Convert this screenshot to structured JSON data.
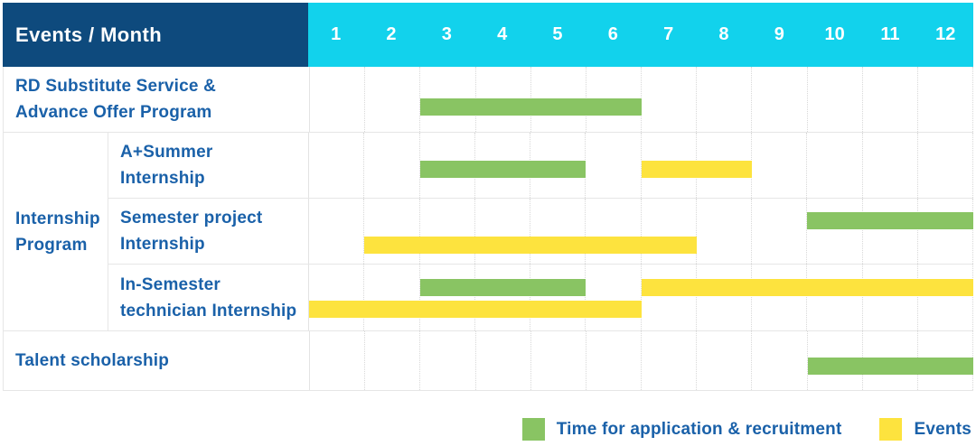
{
  "header": {
    "title": "Events / Month",
    "months": [
      "1",
      "2",
      "3",
      "4",
      "5",
      "6",
      "7",
      "8",
      "9",
      "10",
      "11",
      "12"
    ]
  },
  "rows": {
    "rd": {
      "label": "RD Substitute Service &\nAdvance Offer Program",
      "bars": [
        {
          "color": "green",
          "start": 3,
          "end": 6,
          "top_pct": 48
        }
      ]
    },
    "internship_group": {
      "label": "Internship\nProgram"
    },
    "a_summer": {
      "label": "A+Summer\nInternship",
      "bars": [
        {
          "color": "green",
          "start": 3,
          "end": 5,
          "top_pct": 43
        },
        {
          "color": "yellow",
          "start": 7,
          "end": 8,
          "top_pct": 43
        }
      ]
    },
    "semester_project": {
      "label": "Semester project\nInternship",
      "bars": [
        {
          "color": "green",
          "start": 10,
          "end": 12,
          "top_pct": 21
        },
        {
          "color": "yellow",
          "start": 2,
          "end": 7,
          "top_pct": 59
        }
      ]
    },
    "in_semester": {
      "label": "In-Semester\ntechnician Internship",
      "bars": [
        {
          "color": "green",
          "start": 3,
          "end": 5,
          "top_pct": 22
        },
        {
          "color": "yellow",
          "start": 7,
          "end": 12,
          "top_pct": 22
        },
        {
          "color": "yellow",
          "start": 1,
          "end": 6,
          "top_pct": 55
        }
      ]
    },
    "talent": {
      "label": "Talent scholarship",
      "bars": [
        {
          "color": "green",
          "start": 10,
          "end": 12,
          "top_pct": 44
        }
      ]
    }
  },
  "legend": {
    "application": {
      "label": "Time for application & recruitment",
      "color": "#89c463"
    },
    "events": {
      "label": "Events",
      "color": "#fde33e"
    }
  },
  "colors": {
    "header_bg": "#0e4a7d",
    "months_bg": "#12d2ec",
    "green": "#89c463",
    "yellow": "#fde33e",
    "label_text": "#1a61a9",
    "header_text": "#ffffff"
  },
  "chart_data": {
    "type": "bar",
    "subtype": "gantt",
    "title": "Events / Month",
    "xlabel": "Month",
    "x_ticks": [
      "1",
      "2",
      "3",
      "4",
      "5",
      "6",
      "7",
      "8",
      "9",
      "10",
      "11",
      "12"
    ],
    "x_range": [
      1,
      12
    ],
    "grid": true,
    "legend_position": "bottom-right",
    "series_legend": [
      {
        "name": "Time for application & recruitment",
        "color": "#89c463"
      },
      {
        "name": "Events",
        "color": "#fde33e"
      }
    ],
    "rows": [
      {
        "category": "RD Substitute Service & Advance Offer Program",
        "group": null,
        "bars": [
          {
            "series": "Time for application & recruitment",
            "start_month": 3,
            "end_month": 6
          }
        ]
      },
      {
        "category": "A+Summer Internship",
        "group": "Internship Program",
        "bars": [
          {
            "series": "Time for application & recruitment",
            "start_month": 3,
            "end_month": 5
          },
          {
            "series": "Events",
            "start_month": 7,
            "end_month": 8
          }
        ]
      },
      {
        "category": "Semester project Internship",
        "group": "Internship Program",
        "bars": [
          {
            "series": "Time for application & recruitment",
            "start_month": 10,
            "end_month": 12
          },
          {
            "series": "Events",
            "start_month": 2,
            "end_month": 7
          }
        ]
      },
      {
        "category": "In-Semester technician Internship",
        "group": "Internship Program",
        "bars": [
          {
            "series": "Time for application & recruitment",
            "start_month": 3,
            "end_month": 5
          },
          {
            "series": "Events",
            "start_month": 7,
            "end_month": 12
          },
          {
            "series": "Events",
            "start_month": 1,
            "end_month": 6
          }
        ]
      },
      {
        "category": "Talent scholarship",
        "group": null,
        "bars": [
          {
            "series": "Time for application & recruitment",
            "start_month": 10,
            "end_month": 12
          }
        ]
      }
    ]
  }
}
